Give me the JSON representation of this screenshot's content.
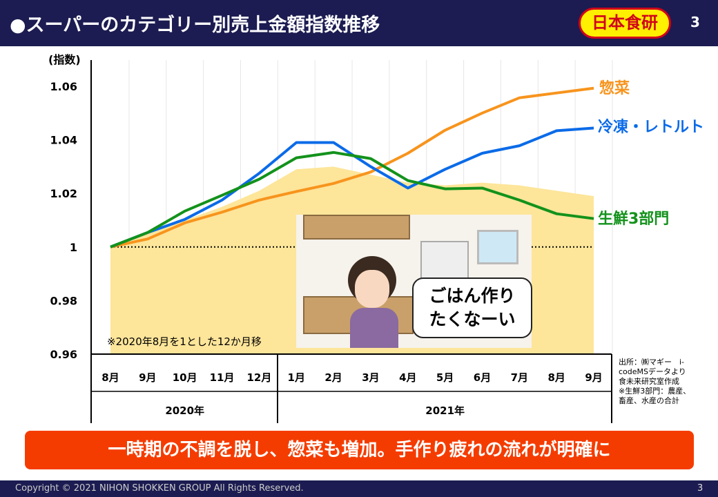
{
  "header": {
    "title": "●スーパーのカテゴリー別売上金額指数推移",
    "logo": "日本食研",
    "page": "3"
  },
  "chart_data": {
    "type": "line",
    "ylabel": "(指数)",
    "ylim": [
      0.96,
      1.06
    ],
    "yticks": [
      "0.96",
      "0.98",
      "1",
      "1.02",
      "1.04",
      "1.06"
    ],
    "ytick_values": [
      0.96,
      0.98,
      1.0,
      1.02,
      1.04,
      1.06
    ],
    "categories": [
      "8月",
      "9月",
      "10月",
      "11月",
      "12月",
      "1月",
      "2月",
      "3月",
      "4月",
      "5月",
      "6月",
      "7月",
      "8月",
      "9月"
    ],
    "year_groups": [
      {
        "label": "2020年",
        "count": 5
      },
      {
        "label": "2021年",
        "count": 9
      }
    ],
    "baseline": 1.0,
    "area": {
      "name": "total",
      "color": "#fde59a",
      "values": [
        1.0,
        1.005,
        1.01,
        1.015,
        1.021,
        1.029,
        1.03,
        1.027,
        1.024,
        1.023,
        1.024,
        1.023,
        1.021,
        1.019
      ]
    },
    "series": [
      {
        "name": "惣菜",
        "color": "#f7941d",
        "values": [
          1.0,
          1.003,
          1.009,
          1.013,
          1.0175,
          1.0207,
          1.0237,
          1.028,
          1.035,
          1.0436,
          1.05,
          1.0557,
          1.0575,
          1.0593
        ]
      },
      {
        "name": "冷凍・レトルト",
        "color": "#0b6be8",
        "values": [
          1.0,
          1.0054,
          1.0103,
          1.0175,
          1.0275,
          1.039,
          1.039,
          1.03,
          1.022,
          1.029,
          1.035,
          1.0378,
          1.0434,
          1.0444
        ]
      },
      {
        "name": "生鮮3部門",
        "color": "#13921b",
        "values": [
          1.0,
          1.0054,
          1.0134,
          1.0193,
          1.0253,
          1.0333,
          1.0353,
          1.033,
          1.0248,
          1.0217,
          1.022,
          1.0175,
          1.0124,
          1.0106
        ]
      }
    ],
    "note": "※2020年8月を1とした12か月移"
  },
  "source": [
    "出所：㈱マギー　i-",
    "codeMSデータより",
    "食未来研究室作成",
    "※生鮮3部門：農産、",
    "畜産、水産の合計"
  ],
  "bubble": {
    "line1": "ごはん作り",
    "line2": "たくなーい"
  },
  "banner": "一時期の不調を脱し、惣菜も増加。手作り疲れの流れが明確に",
  "footer": {
    "copyright": "Copyright © 2021 NIHON SHOKKEN GROUP All Rights Reserved.",
    "page": "3"
  }
}
